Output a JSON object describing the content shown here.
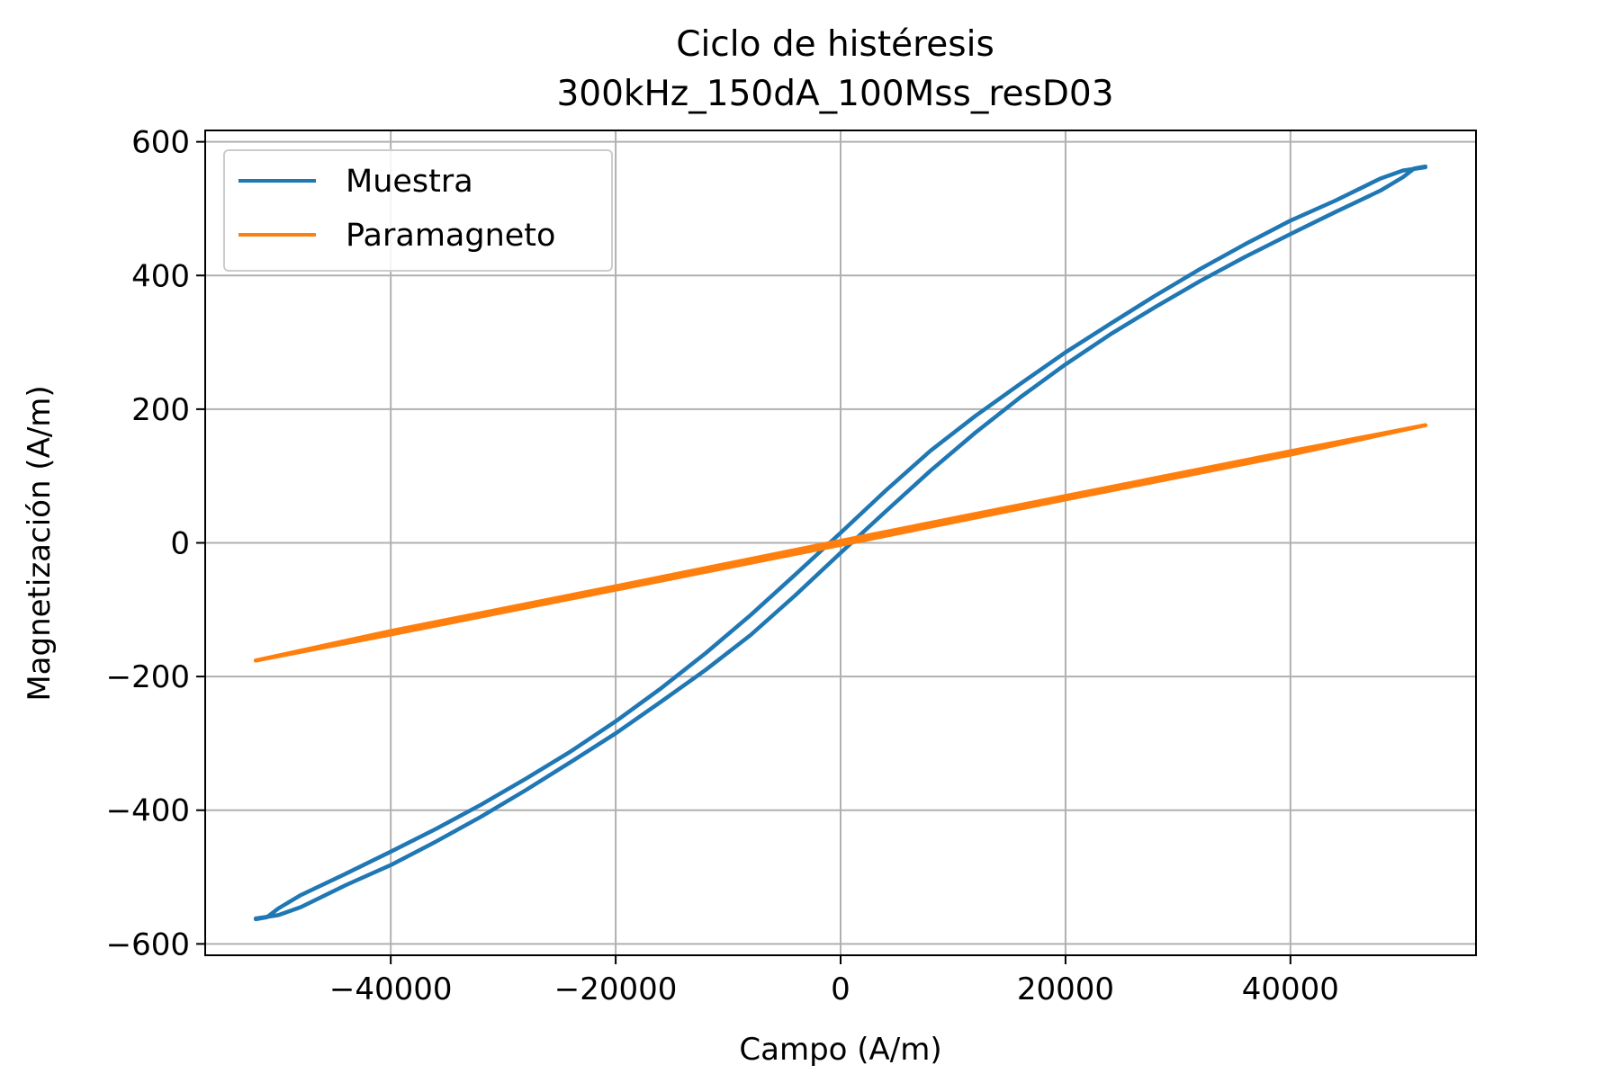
{
  "figure": {
    "title_line1": "Ciclo de histéresis",
    "title_line2": "300kHz_150dA_100Mss_resD03"
  },
  "chart_data": {
    "type": "line",
    "title": "Ciclo de histéresis\n300kHz_150dA_100Mss_resD03",
    "xlabel": "Campo (A/m)",
    "ylabel": "Magnetización (A/m)",
    "xlim": [
      -56500,
      56500
    ],
    "ylim": [
      -617,
      617
    ],
    "xticks": [
      -40000,
      -20000,
      0,
      20000,
      40000
    ],
    "xtick_labels": [
      "−40000",
      "−20000",
      "0",
      "20000",
      "40000"
    ],
    "yticks": [
      -600,
      -400,
      -200,
      0,
      200,
      400,
      600
    ],
    "ytick_labels": [
      "−600",
      "−400",
      "−200",
      "0",
      "200",
      "400",
      "600"
    ],
    "grid": true,
    "legend_position": "top-left",
    "series": [
      {
        "name": "Muestra",
        "color": "#1f77b4",
        "branches": [
          {
            "x": [
              -52000,
              -50000,
              -48000,
              -44000,
              -40000,
              -36000,
              -32000,
              -28000,
              -24000,
              -20000,
              -16000,
              -12000,
              -8000,
              -4000,
              0,
              2000,
              4000,
              8000,
              12000,
              16000,
              20000,
              24000,
              28000,
              32000,
              36000,
              40000,
              44000,
              48000,
              50000,
              51000,
              52000
            ],
            "y": [
              -562,
              -557,
              -545,
              -512,
              -482,
              -447,
              -410,
              -370,
              -328,
              -285,
              -238,
              -190,
              -138,
              -78,
              -15,
              16,
              47,
              108,
              165,
              218,
              267,
              312,
              353,
              392,
              428,
              462,
              495,
              527,
              547,
              560,
              563
            ]
          },
          {
            "x": [
              -52000,
              -51000,
              -50000,
              -48000,
              -44000,
              -40000,
              -36000,
              -32000,
              -28000,
              -24000,
              -20000,
              -16000,
              -12000,
              -8000,
              -4000,
              -2000,
              0,
              4000,
              8000,
              12000,
              16000,
              20000,
              24000,
              28000,
              32000,
              36000,
              40000,
              44000,
              48000,
              50000,
              52000
            ],
            "y": [
              -563,
              -560,
              -547,
              -527,
              -495,
              -462,
              -428,
              -392,
              -353,
              -312,
              -267,
              -218,
              -165,
              -108,
              -47,
              -16,
              15,
              78,
              138,
              190,
              238,
              285,
              328,
              370,
              410,
              447,
              482,
              512,
              545,
              557,
              562
            ]
          }
        ]
      },
      {
        "name": "Paramagneto",
        "color": "#ff7f0e",
        "branches": [
          {
            "x": [
              -52000,
              -40000,
              -20000,
              0,
              20000,
              40000,
              52000
            ],
            "y": [
              -176,
              -137,
              -70,
              -3,
              65,
              132,
              176
            ]
          },
          {
            "x": [
              -52000,
              -40000,
              -20000,
              0,
              20000,
              40000,
              52000
            ],
            "y": [
              -176,
              -132,
              -65,
              3,
              70,
              137,
              176
            ]
          }
        ]
      }
    ]
  }
}
